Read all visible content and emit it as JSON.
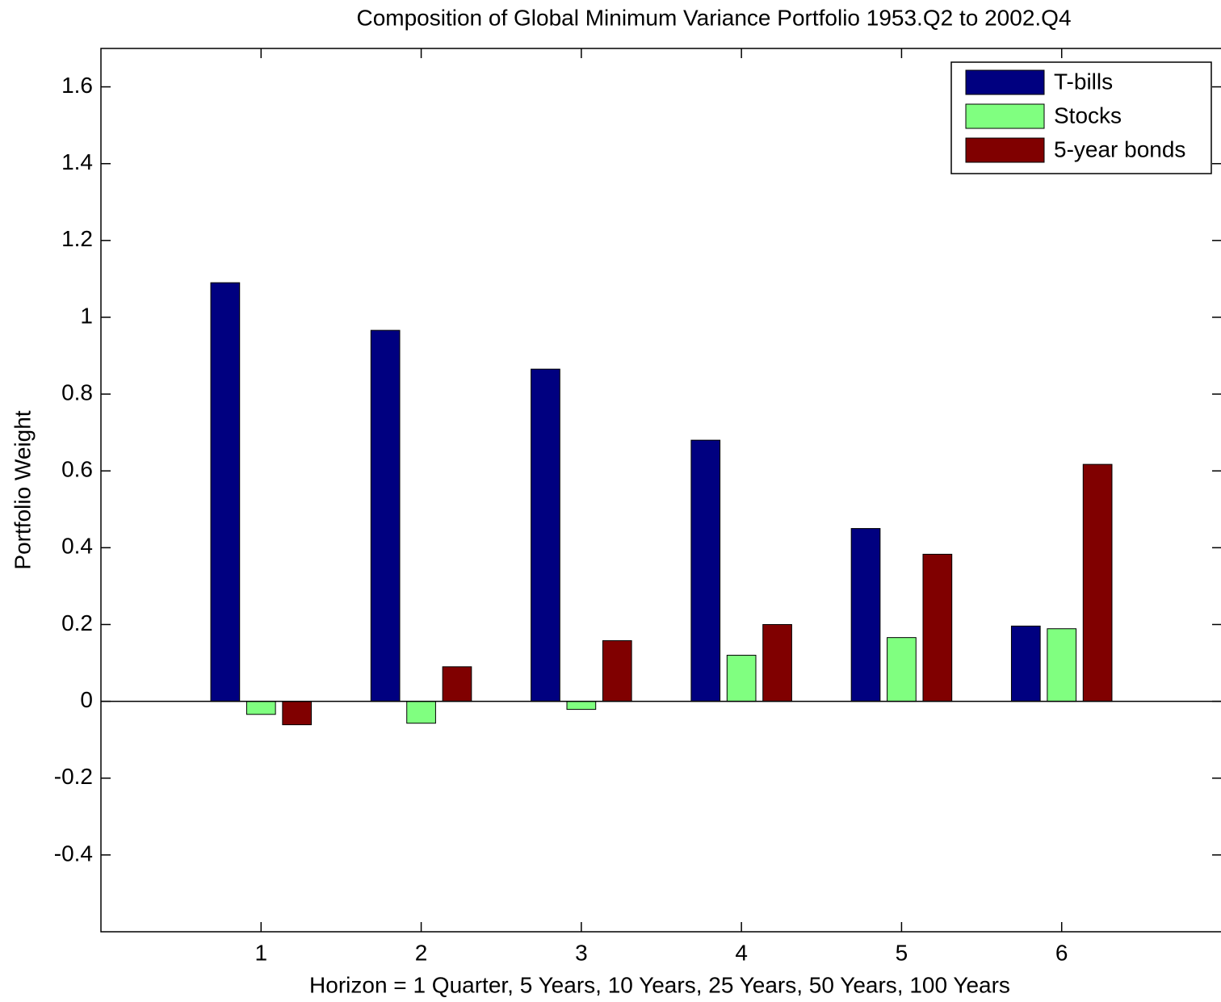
{
  "chart_data": {
    "type": "bar",
    "title": "Composition of Global Minimum Variance Portfolio 1953.Q2 to 2002.Q4",
    "x_label": "Horizon = 1 Quarter, 5 Years, 10 Years, 25 Years, 50 Years, 100 Years",
    "y_label": "Portfolio Weight",
    "x": [
      1,
      2,
      3,
      4,
      5,
      6
    ],
    "xlim": [
      0,
      7
    ],
    "xticks": [
      1,
      2,
      3,
      4,
      5,
      6
    ],
    "ylim": [
      -0.6,
      1.7
    ],
    "yticks": [
      -0.4,
      -0.2,
      0,
      0.2,
      0.4,
      0.6,
      0.8,
      1,
      1.2,
      1.4,
      1.6
    ],
    "legend": "top-right",
    "series": [
      {
        "name": "T-bills",
        "color": "#000080",
        "values": [
          1.09,
          0.966,
          0.865,
          0.68,
          0.45,
          0.196
        ]
      },
      {
        "name": "Stocks",
        "color": "#80ff80",
        "values": [
          -0.034,
          -0.057,
          -0.021,
          0.12,
          0.166,
          0.189
        ]
      },
      {
        "name": "5-year bonds",
        "color": "#800000",
        "values": [
          -0.061,
          0.09,
          0.158,
          0.2,
          0.383,
          0.617
        ]
      }
    ]
  }
}
